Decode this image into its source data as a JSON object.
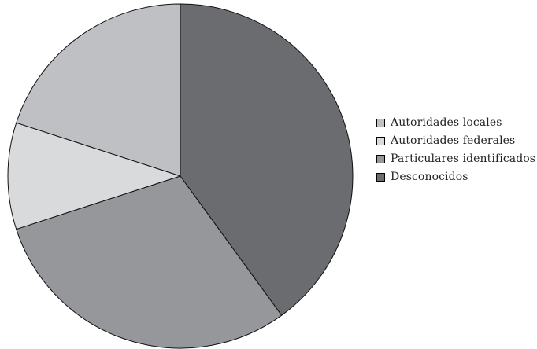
{
  "chart_data": {
    "type": "pie",
    "title": "",
    "categories": [
      "Autoridades locales",
      "Autoridades federales",
      "Particulares identificados",
      "Desconocidos"
    ],
    "values": [
      20,
      10,
      30,
      40
    ],
    "unit": "%",
    "colors": [
      "#bfc0c4",
      "#d9dadc",
      "#96979b",
      "#6b6c70"
    ],
    "start_angle_deg": 0,
    "direction": "counterclockwise",
    "legend_position": "right",
    "legend": [
      {
        "label": "Autoridades locales",
        "color": "#bfc0c4"
      },
      {
        "label": "Autoridades federales",
        "color": "#d9dadc"
      },
      {
        "label": "Particulares identificados",
        "color": "#96979b"
      },
      {
        "label": "Desconocidos",
        "color": "#6b6c70"
      }
    ]
  }
}
